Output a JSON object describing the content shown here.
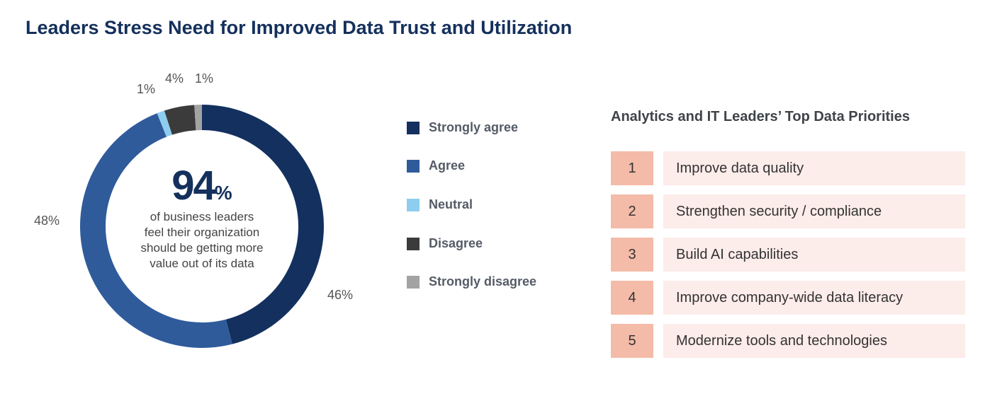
{
  "page": {
    "title": "Leaders Stress Need for Improved Data Trust and Utilization"
  },
  "chart_data": {
    "type": "pie",
    "title": "",
    "categories": [
      "Strongly agree",
      "Agree",
      "Neutral",
      "Disagree",
      "Strongly disagree"
    ],
    "values": [
      46,
      48,
      1,
      4,
      1
    ],
    "value_labels": [
      "46%",
      "48%",
      "1%",
      "4%",
      "1%"
    ],
    "colors": [
      "#13305f",
      "#2f5b9b",
      "#8ecdf0",
      "#3b3b3b",
      "#a3a3a3"
    ],
    "donut": true,
    "legend": "right",
    "center": {
      "value": "94",
      "unit": "%",
      "text_lines": [
        "of business leaders",
        "feel their organization",
        "should be getting more",
        "value out of its data"
      ]
    }
  },
  "priorities": {
    "title": "Analytics and IT Leaders’ Top Data Priorities",
    "items": [
      {
        "rank": "1",
        "label": "Improve data quality"
      },
      {
        "rank": "2",
        "label": "Strengthen security / compliance"
      },
      {
        "rank": "3",
        "label": "Build AI capabilities"
      },
      {
        "rank": "4",
        "label": "Improve company-wide data literacy"
      },
      {
        "rank": "5",
        "label": "Modernize tools and technologies"
      }
    ],
    "colors": {
      "rank_bg": "#f4bba8",
      "label_bg": "#fcecea"
    }
  }
}
